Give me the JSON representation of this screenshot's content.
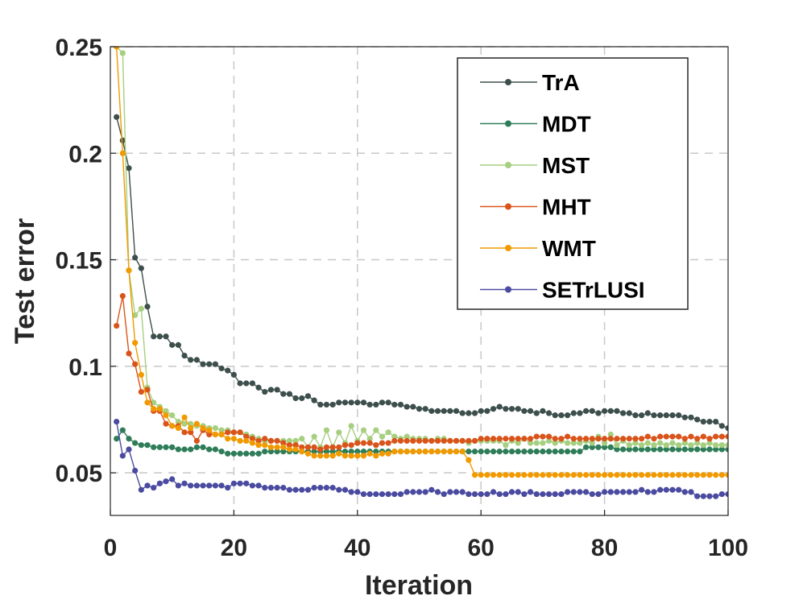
{
  "chart_data": {
    "type": "line",
    "title": "",
    "xlabel": "Iteration",
    "ylabel": "Test error",
    "xlim": [
      0,
      100
    ],
    "ylim": [
      0.03,
      0.25
    ],
    "xticks": [
      0,
      20,
      40,
      60,
      80,
      100
    ],
    "xtick_labels": [
      "0",
      "20",
      "40",
      "60",
      "80",
      "100"
    ],
    "yticks": [
      0.05,
      0.1,
      0.15,
      0.2,
      0.25
    ],
    "ytick_labels": [
      "0.05",
      "0.1",
      "0.15",
      "0.2",
      "0.25"
    ],
    "grid": true,
    "legend_position": "top-right",
    "series": [
      {
        "name": "TrA",
        "color": "#3d4f4c",
        "x_start": 1,
        "values": [
          0.217,
          0.206,
          0.193,
          0.151,
          0.146,
          0.128,
          0.114,
          0.114,
          0.114,
          0.11,
          0.11,
          0.105,
          0.103,
          0.103,
          0.101,
          0.101,
          0.101,
          0.099,
          0.098,
          0.096,
          0.092,
          0.092,
          0.092,
          0.09,
          0.088,
          0.089,
          0.089,
          0.087,
          0.087,
          0.085,
          0.085,
          0.086,
          0.084,
          0.082,
          0.082,
          0.082,
          0.083,
          0.083,
          0.083,
          0.083,
          0.083,
          0.082,
          0.082,
          0.083,
          0.083,
          0.082,
          0.082,
          0.081,
          0.081,
          0.08,
          0.08,
          0.079,
          0.079,
          0.079,
          0.079,
          0.079,
          0.078,
          0.078,
          0.078,
          0.079,
          0.079,
          0.08,
          0.081,
          0.08,
          0.08,
          0.08,
          0.079,
          0.079,
          0.078,
          0.079,
          0.078,
          0.077,
          0.077,
          0.077,
          0.078,
          0.078,
          0.079,
          0.079,
          0.078,
          0.079,
          0.079,
          0.079,
          0.078,
          0.078,
          0.077,
          0.077,
          0.078,
          0.077,
          0.077,
          0.077,
          0.077,
          0.077,
          0.076,
          0.076,
          0.075,
          0.074,
          0.074,
          0.074,
          0.072,
          0.071
        ]
      },
      {
        "name": "MDT",
        "color": "#2e7d58",
        "x_start": 1,
        "values": [
          0.066,
          0.07,
          0.066,
          0.064,
          0.063,
          0.063,
          0.062,
          0.062,
          0.062,
          0.062,
          0.061,
          0.061,
          0.061,
          0.062,
          0.062,
          0.061,
          0.061,
          0.06,
          0.059,
          0.059,
          0.059,
          0.059,
          0.059,
          0.059,
          0.06,
          0.06,
          0.06,
          0.06,
          0.06,
          0.06,
          0.06,
          0.06,
          0.06,
          0.06,
          0.06,
          0.06,
          0.06,
          0.06,
          0.06,
          0.06,
          0.06,
          0.06,
          0.06,
          0.06,
          0.06,
          0.06,
          0.06,
          0.06,
          0.06,
          0.06,
          0.06,
          0.06,
          0.06,
          0.06,
          0.06,
          0.06,
          0.06,
          0.06,
          0.06,
          0.06,
          0.06,
          0.06,
          0.06,
          0.06,
          0.06,
          0.06,
          0.06,
          0.06,
          0.06,
          0.06,
          0.06,
          0.06,
          0.06,
          0.06,
          0.06,
          0.06,
          0.062,
          0.062,
          0.062,
          0.062,
          0.062,
          0.061,
          0.061,
          0.061,
          0.061,
          0.061,
          0.061,
          0.061,
          0.061,
          0.061,
          0.061,
          0.061,
          0.061,
          0.061,
          0.061,
          0.061,
          0.061,
          0.061,
          0.061,
          0.061
        ]
      },
      {
        "name": "MST",
        "color": "#a6cf80",
        "x_start": 1,
        "values": [
          0.25,
          0.247,
          0.145,
          0.124,
          0.127,
          0.09,
          0.083,
          0.081,
          0.079,
          0.077,
          0.074,
          0.073,
          0.073,
          0.072,
          0.072,
          0.071,
          0.071,
          0.07,
          0.07,
          0.069,
          0.069,
          0.068,
          0.067,
          0.066,
          0.065,
          0.065,
          0.065,
          0.065,
          0.065,
          0.065,
          0.066,
          0.062,
          0.067,
          0.062,
          0.07,
          0.062,
          0.069,
          0.064,
          0.072,
          0.065,
          0.07,
          0.066,
          0.07,
          0.067,
          0.069,
          0.067,
          0.066,
          0.067,
          0.066,
          0.066,
          0.066,
          0.065,
          0.066,
          0.066,
          0.065,
          0.065,
          0.065,
          0.064,
          0.065,
          0.065,
          0.065,
          0.065,
          0.065,
          0.063,
          0.065,
          0.064,
          0.066,
          0.064,
          0.064,
          0.064,
          0.065,
          0.064,
          0.065,
          0.064,
          0.064,
          0.064,
          0.065,
          0.064,
          0.067,
          0.064,
          0.068,
          0.063,
          0.065,
          0.063,
          0.064,
          0.063,
          0.064,
          0.063,
          0.064,
          0.063,
          0.064,
          0.063,
          0.064,
          0.063,
          0.064,
          0.063,
          0.064,
          0.063,
          0.063,
          0.063
        ]
      },
      {
        "name": "MHT",
        "color": "#d9541a",
        "x_start": 1,
        "values": [
          0.119,
          0.133,
          0.106,
          0.101,
          0.088,
          0.089,
          0.079,
          0.079,
          0.073,
          0.072,
          0.072,
          0.069,
          0.069,
          0.065,
          0.07,
          0.068,
          0.068,
          0.068,
          0.069,
          0.069,
          0.069,
          0.067,
          0.066,
          0.065,
          0.066,
          0.065,
          0.065,
          0.064,
          0.063,
          0.063,
          0.062,
          0.062,
          0.062,
          0.061,
          0.062,
          0.062,
          0.062,
          0.063,
          0.063,
          0.064,
          0.064,
          0.064,
          0.063,
          0.064,
          0.064,
          0.065,
          0.065,
          0.065,
          0.065,
          0.065,
          0.065,
          0.065,
          0.065,
          0.065,
          0.065,
          0.065,
          0.065,
          0.065,
          0.065,
          0.066,
          0.066,
          0.066,
          0.066,
          0.066,
          0.066,
          0.066,
          0.066,
          0.066,
          0.067,
          0.067,
          0.067,
          0.066,
          0.066,
          0.067,
          0.066,
          0.066,
          0.066,
          0.066,
          0.066,
          0.066,
          0.066,
          0.066,
          0.066,
          0.066,
          0.066,
          0.066,
          0.067,
          0.066,
          0.067,
          0.067,
          0.067,
          0.067,
          0.066,
          0.067,
          0.066,
          0.067,
          0.066,
          0.067,
          0.067,
          0.067
        ]
      },
      {
        "name": "WMT",
        "color": "#f09a00",
        "x_start": 1,
        "values": [
          0.25,
          0.2,
          0.145,
          0.111,
          0.096,
          0.083,
          0.08,
          0.08,
          0.077,
          0.072,
          0.071,
          0.076,
          0.071,
          0.073,
          0.071,
          0.07,
          0.068,
          0.068,
          0.066,
          0.066,
          0.065,
          0.065,
          0.064,
          0.063,
          0.063,
          0.062,
          0.062,
          0.062,
          0.061,
          0.061,
          0.06,
          0.059,
          0.058,
          0.058,
          0.058,
          0.058,
          0.059,
          0.058,
          0.058,
          0.058,
          0.058,
          0.059,
          0.058,
          0.059,
          0.059,
          0.06,
          0.06,
          0.06,
          0.06,
          0.06,
          0.06,
          0.06,
          0.06,
          0.06,
          0.06,
          0.06,
          0.06,
          0.056,
          0.049,
          0.049,
          0.049,
          0.049,
          0.049,
          0.049,
          0.049,
          0.049,
          0.049,
          0.049,
          0.049,
          0.049,
          0.049,
          0.049,
          0.049,
          0.049,
          0.049,
          0.049,
          0.049,
          0.049,
          0.049,
          0.049,
          0.049,
          0.049,
          0.049,
          0.049,
          0.049,
          0.049,
          0.049,
          0.049,
          0.049,
          0.049,
          0.049,
          0.049,
          0.049,
          0.049,
          0.049,
          0.049,
          0.049,
          0.049,
          0.049,
          0.049
        ]
      },
      {
        "name": "SETrLUSI",
        "color": "#4a4aa0",
        "x_start": 1,
        "values": [
          0.074,
          0.058,
          0.061,
          0.051,
          0.042,
          0.044,
          0.043,
          0.045,
          0.046,
          0.047,
          0.044,
          0.045,
          0.044,
          0.044,
          0.044,
          0.044,
          0.044,
          0.044,
          0.043,
          0.045,
          0.045,
          0.045,
          0.044,
          0.044,
          0.043,
          0.043,
          0.043,
          0.043,
          0.042,
          0.042,
          0.042,
          0.042,
          0.043,
          0.043,
          0.043,
          0.043,
          0.042,
          0.042,
          0.041,
          0.041,
          0.04,
          0.04,
          0.04,
          0.04,
          0.04,
          0.04,
          0.04,
          0.041,
          0.041,
          0.041,
          0.041,
          0.042,
          0.041,
          0.04,
          0.041,
          0.041,
          0.041,
          0.04,
          0.04,
          0.04,
          0.04,
          0.041,
          0.04,
          0.04,
          0.041,
          0.041,
          0.04,
          0.041,
          0.04,
          0.04,
          0.04,
          0.04,
          0.04,
          0.041,
          0.041,
          0.041,
          0.041,
          0.04,
          0.04,
          0.041,
          0.041,
          0.041,
          0.041,
          0.041,
          0.041,
          0.042,
          0.041,
          0.041,
          0.042,
          0.042,
          0.042,
          0.042,
          0.041,
          0.041,
          0.039,
          0.039,
          0.039,
          0.039,
          0.04,
          0.04
        ]
      }
    ]
  }
}
